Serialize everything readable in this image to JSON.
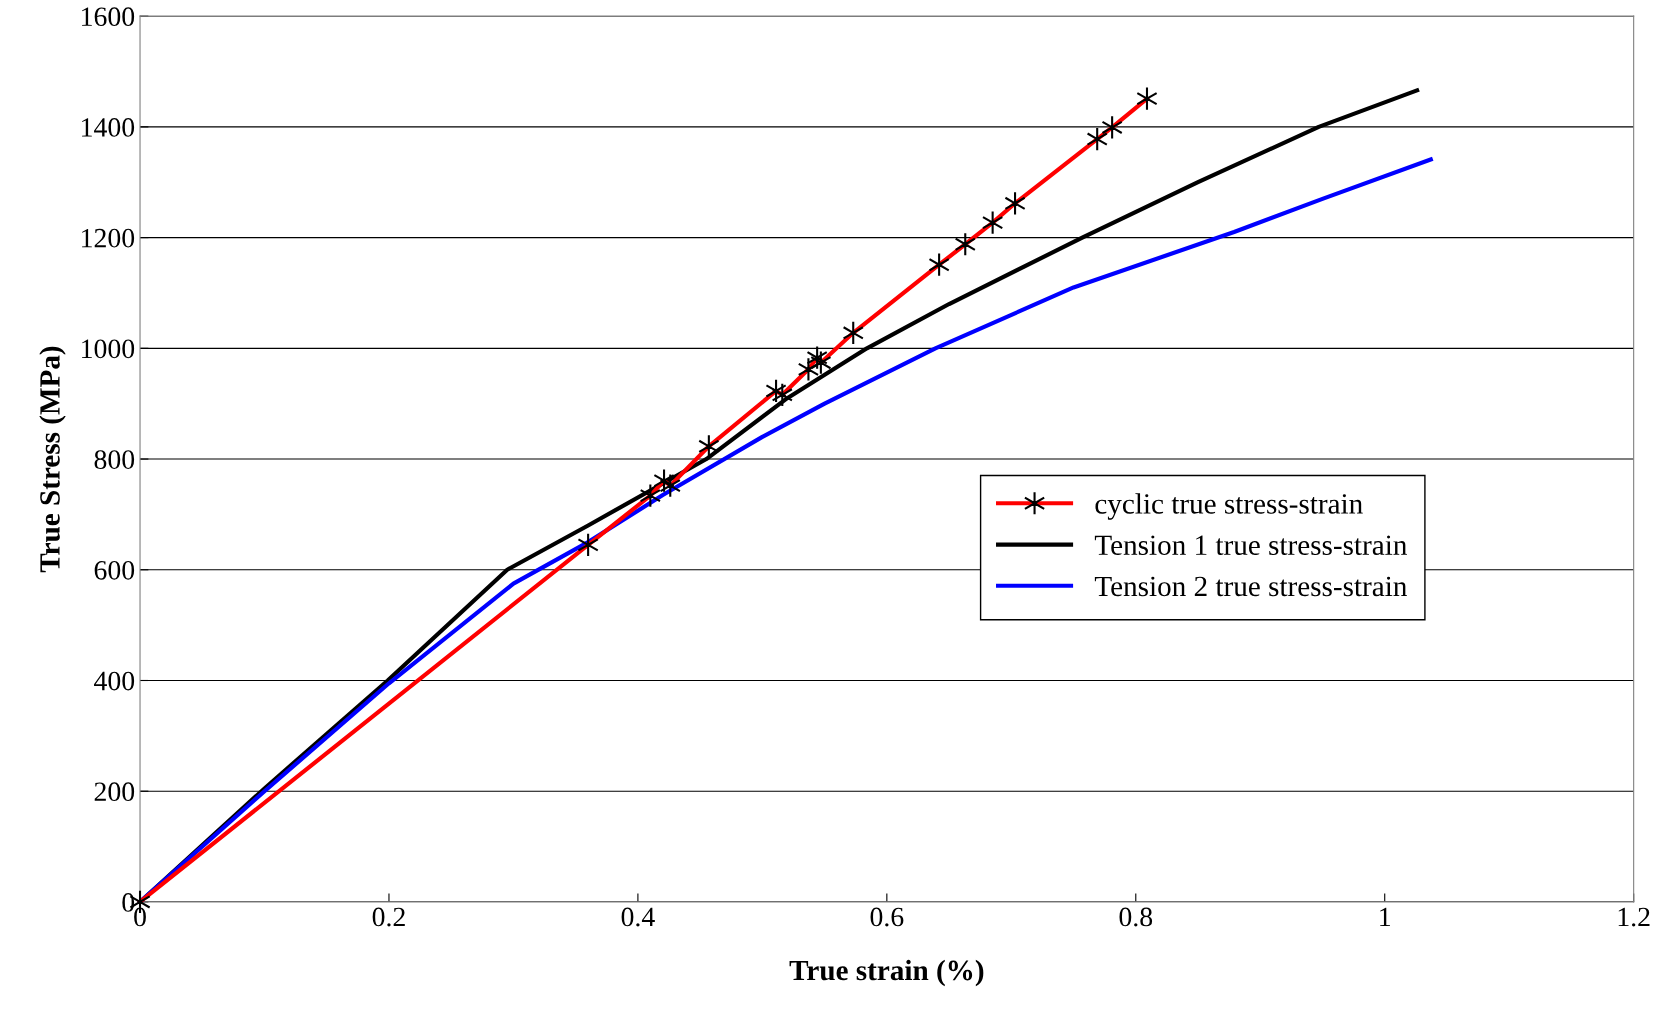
{
  "chart_data": {
    "type": "line",
    "xlabel": "True strain (%)",
    "ylabel": "True Stress (MPa)",
    "xlim": [
      0,
      1.2
    ],
    "xticks": [
      0,
      0.2,
      0.4,
      0.6,
      0.8,
      1,
      1.2
    ],
    "ylim": [
      0,
      1600
    ],
    "yticks": [
      0,
      200,
      400,
      600,
      800,
      1000,
      1200,
      1400,
      1600
    ],
    "grid": "y",
    "legend": "right",
    "series": [
      {
        "name": "cyclic true stress-strain",
        "color": "#ff0000",
        "marker": "cross",
        "x": [
          0,
          0.36,
          0.41,
          0.421,
          0.426,
          0.457,
          0.511,
          0.516,
          0.537,
          0.544,
          0.547,
          0.573,
          0.642,
          0.663,
          0.685,
          0.703,
          0.769,
          0.781,
          0.809
        ],
        "values": [
          0,
          645,
          734,
          761,
          752,
          823,
          923,
          916,
          962,
          983,
          974,
          1028,
          1151,
          1188,
          1227,
          1262,
          1378,
          1399,
          1451
        ]
      },
      {
        "name": "Tension 1 true stress-strain",
        "color": "#000000",
        "marker": "none",
        "x": [
          0,
          0.1,
          0.199,
          0.295,
          0.36,
          0.455,
          0.52,
          0.584,
          0.65,
          0.757,
          0.85,
          0.947,
          1.026
        ],
        "values": [
          0,
          205,
          400,
          600,
          680,
          800,
          910,
          1000,
          1080,
          1200,
          1300,
          1400,
          1466
        ]
      },
      {
        "name": "Tension 2 true stress-strain",
        "color": "#0000ff",
        "marker": "none",
        "x": [
          0,
          0.1,
          0.2,
          0.3,
          0.36,
          0.42,
          0.5,
          0.55,
          0.639,
          0.75,
          0.879,
          0.95,
          1.037
        ],
        "values": [
          0,
          200,
          395,
          575,
          650,
          735,
          840,
          900,
          1000,
          1110,
          1210,
          1270,
          1341
        ]
      }
    ]
  }
}
